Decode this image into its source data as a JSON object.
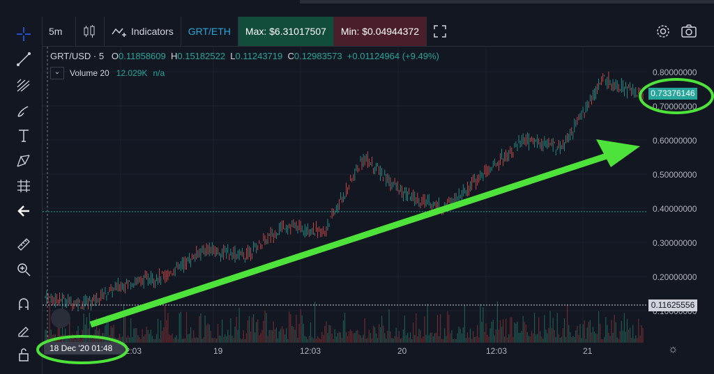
{
  "toolbar": {
    "interval": "5m",
    "indicators_label": "Indicators",
    "pair": "GRT/ETH",
    "max_label": "Max: $6.31017507",
    "min_label": "Min: $0.04944372"
  },
  "legend": {
    "symbol": "GRT/USD · 5",
    "open_label": "O",
    "open": "0.11858609",
    "high_label": "H",
    "high": "0.15182522",
    "low_label": "L",
    "low": "0.11243719",
    "close_label": "C",
    "close": "0.12983573",
    "change": "+0.01124964 (+9.49%)",
    "volume_label": "Volume 20",
    "volume_value": "12.029K",
    "volume_na": "n/a",
    "collapse_icon": "chevron-down-icon"
  },
  "price_axis": [
    "0.80000000",
    "0.70000000",
    "0.60000000",
    "0.50000000",
    "0.40000000",
    "0.30000000",
    "0.20000000",
    "0.10000000"
  ],
  "current_price": "0.73376146",
  "reference_price": "0.11625556",
  "time_axis": [
    "12:03",
    "19",
    "12:03",
    "20",
    "12:03",
    "21"
  ],
  "crosshair_date": "18 Dec '20   01:48",
  "colors": {
    "up": "#26a69a",
    "down": "#ef5350",
    "annotation": "#4ee33a",
    "background": "#131722"
  },
  "chart_data": {
    "type": "line",
    "title": "GRT/USD · 5",
    "xlabel": "",
    "ylabel": "",
    "ylim": [
      0.0,
      0.85
    ],
    "series": [
      {
        "name": "GRT/USD",
        "x": [
          "18 Dec 01:48",
          "18 Dec 06",
          "18 Dec 12:03",
          "18 Dec 18",
          "19 Dec 00",
          "19 Dec 06",
          "19 Dec 12:03",
          "19 Dec 18",
          "19 Dec 21",
          "20 Dec 00",
          "20 Dec 06",
          "20 Dec 12:03",
          "20 Dec 18",
          "21 Dec 00",
          "21 Dec 06",
          "21 Dec 09"
        ],
        "y": [
          0.14,
          0.12,
          0.18,
          0.2,
          0.28,
          0.26,
          0.35,
          0.33,
          0.55,
          0.44,
          0.4,
          0.5,
          0.6,
          0.58,
          0.78,
          0.73
        ]
      }
    ],
    "annotations": [
      "green uptrend arrow",
      "circled current price 0.73376146",
      "circled date 18 Dec '20 01:48"
    ]
  }
}
